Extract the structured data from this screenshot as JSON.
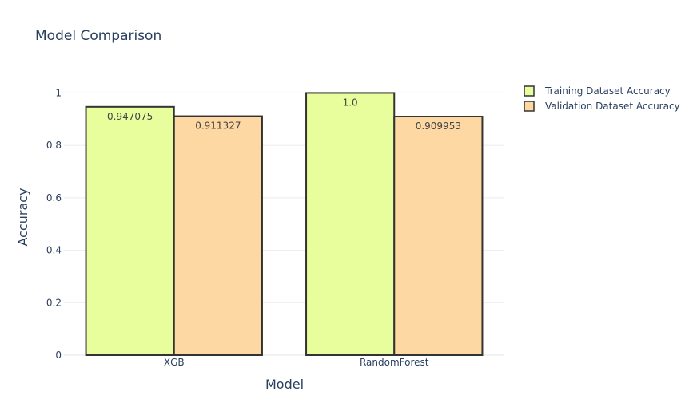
{
  "chart_data": {
    "type": "bar",
    "title": "Model Comparison",
    "xlabel": "Model",
    "ylabel": "Accuracy",
    "categories": [
      "XGB",
      "RandomForest"
    ],
    "series": [
      {
        "name": "Training Dataset Accuracy",
        "values": [
          0.947075,
          1.0
        ],
        "labels": [
          "0.947075",
          "1.0"
        ],
        "color": "#e8fd9c"
      },
      {
        "name": "Validation Dataset Accuracy",
        "values": [
          0.911327,
          0.909953
        ],
        "labels": [
          "0.911327",
          "0.909953"
        ],
        "color": "#fed8a3"
      }
    ],
    "ylim": [
      0,
      1.05
    ],
    "yticks": [
      0,
      0.2,
      0.4,
      0.6,
      0.8,
      1
    ],
    "ytick_labels": [
      "0",
      "0.2",
      "0.4",
      "0.6",
      "0.8",
      "1"
    ],
    "bar_outline_color": "#333333",
    "grid": true,
    "legend_position": "top-right"
  }
}
